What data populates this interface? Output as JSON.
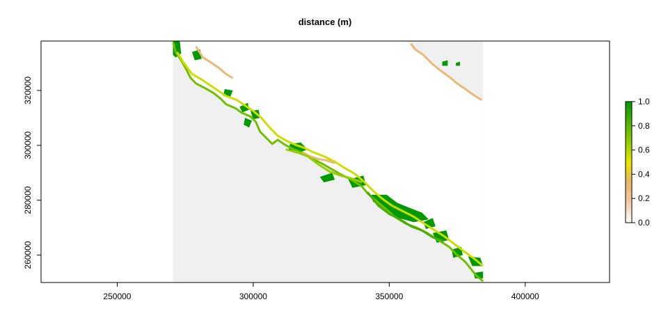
{
  "chart_data": {
    "type": "heatmap",
    "title": "distance (m)",
    "xlabel": "",
    "ylabel": "",
    "xlim": [
      222000,
      431000
    ],
    "ylim": [
      250000,
      338000
    ],
    "x_ticks": [
      250000,
      300000,
      350000,
      400000
    ],
    "x_tick_labels": [
      "250000",
      "300000",
      "350000",
      "400000"
    ],
    "y_ticks": [
      260000,
      280000,
      300000,
      320000
    ],
    "y_tick_labels": [
      "260000",
      "280000",
      "300000",
      "320000"
    ],
    "raster_extent": {
      "xmin": 270500,
      "xmax": 384500,
      "ymin": 250000,
      "ymax": 338000
    },
    "na_color": "#f0f0f0",
    "legend": {
      "position": "right",
      "min": 0,
      "max": 1,
      "ticks": [
        0.0,
        0.2,
        0.4,
        0.6,
        0.8,
        1.0
      ],
      "tick_labels": [
        "0.0",
        "0.2",
        "0.4",
        "0.6",
        "0.8",
        "1.0"
      ],
      "colors": [
        "#ffffff",
        "#f3c9a6",
        "#e8b56b",
        "#e6e600",
        "#8fcc00",
        "#4fb000",
        "#009900"
      ]
    },
    "coastlines": [
      {
        "name": "",
        "value": 0.75,
        "points": [
          [
            270600,
            337500
          ],
          [
            271500,
            334000
          ],
          [
            273500,
            331000
          ],
          [
            275500,
            327500
          ],
          [
            277000,
            324500
          ],
          [
            279000,
            322500
          ],
          [
            282000,
            321000
          ],
          [
            285500,
            319000
          ],
          [
            288000,
            317000
          ],
          [
            290000,
            315000
          ],
          [
            293500,
            313500
          ],
          [
            295500,
            312000
          ],
          [
            299000,
            310500
          ],
          [
            301000,
            308500
          ],
          [
            302500,
            305000
          ],
          [
            305000,
            302500
          ],
          [
            307000,
            300500
          ],
          [
            309000,
            302000
          ],
          [
            312000,
            300000
          ],
          [
            315000,
            298500
          ],
          [
            318500,
            297000
          ],
          [
            322000,
            295000
          ],
          [
            325000,
            293500
          ],
          [
            328500,
            291500
          ],
          [
            332000,
            289500
          ],
          [
            336000,
            287500
          ],
          [
            340000,
            285000
          ],
          [
            342000,
            282500
          ],
          [
            345000,
            280000
          ],
          [
            348500,
            277000
          ],
          [
            352000,
            274000
          ],
          [
            356000,
            271500
          ],
          [
            360000,
            270000
          ],
          [
            364000,
            268000
          ],
          [
            368000,
            265500
          ],
          [
            372000,
            263000
          ],
          [
            375000,
            260000
          ],
          [
            378000,
            257500
          ],
          [
            380000,
            255000
          ],
          [
            382000,
            252500
          ],
          [
            384500,
            250500
          ]
        ]
      },
      {
        "name": "",
        "value": 0.55,
        "points": [
          [
            272000,
            334000
          ],
          [
            274500,
            330000
          ],
          [
            277500,
            326000
          ],
          [
            281000,
            324000
          ],
          [
            284000,
            322000
          ],
          [
            287000,
            320000
          ],
          [
            290000,
            318000
          ],
          [
            294000,
            316500
          ],
          [
            297000,
            314500
          ],
          [
            300000,
            312500
          ],
          [
            303000,
            310000
          ],
          [
            306000,
            306500
          ],
          [
            309000,
            303500
          ],
          [
            312500,
            301500
          ],
          [
            316000,
            300000
          ],
          [
            319000,
            299000
          ],
          [
            322000,
            297500
          ],
          [
            326000,
            296000
          ],
          [
            330000,
            294000
          ],
          [
            334000,
            291500
          ],
          [
            337500,
            289500
          ],
          [
            341000,
            286500
          ],
          [
            344000,
            283500
          ],
          [
            347500,
            280500
          ],
          [
            351000,
            278000
          ],
          [
            355000,
            276000
          ],
          [
            359000,
            274000
          ],
          [
            362000,
            272000
          ],
          [
            366000,
            269500
          ],
          [
            370000,
            267000
          ],
          [
            374000,
            264000
          ],
          [
            378000,
            261000
          ],
          [
            381500,
            258500
          ],
          [
            384500,
            256000
          ]
        ]
      },
      {
        "name": "",
        "value": 0.3,
        "points": [
          [
            279000,
            336000
          ],
          [
            281500,
            332000
          ],
          [
            284000,
            330500
          ],
          [
            287000,
            328500
          ],
          [
            290000,
            326000
          ],
          [
            292500,
            324500
          ]
        ]
      },
      {
        "name": "",
        "value": 0.3,
        "points": [
          [
            358000,
            337000
          ],
          [
            359500,
            335000
          ],
          [
            362500,
            333000
          ],
          [
            365500,
            330000
          ],
          [
            368500,
            327500
          ],
          [
            372000,
            325000
          ],
          [
            375000,
            322500
          ],
          [
            378000,
            320500
          ],
          [
            381500,
            318000
          ],
          [
            384000,
            316500
          ]
        ]
      },
      {
        "name": "",
        "value": 0.3,
        "points": [
          [
            318000,
            297500
          ],
          [
            321000,
            296000
          ],
          [
            324000,
            295000
          ],
          [
            327000,
            294500
          ],
          [
            330000,
            293500
          ]
        ]
      },
      {
        "name": "",
        "value": 0.65,
        "points": [
          [
            312000,
            298500
          ],
          [
            316000,
            297500
          ],
          [
            320000,
            296000
          ],
          [
            324000,
            293000
          ],
          [
            328000,
            290500
          ],
          [
            332000,
            289000
          ],
          [
            336000,
            288000
          ],
          [
            340000,
            286500
          ]
        ]
      },
      {
        "name": "",
        "value": 0.85,
        "points": [
          [
            342000,
            283000
          ],
          [
            346000,
            278000
          ],
          [
            350000,
            275000
          ],
          [
            354000,
            273000
          ],
          [
            358000,
            270500
          ],
          [
            362000,
            269000
          ],
          [
            366000,
            266500
          ],
          [
            370000,
            265000
          ]
        ]
      }
    ],
    "patches": [
      {
        "name": "",
        "value": 1.0,
        "points": [
          [
            270500,
            338000
          ],
          [
            273000,
            338000
          ],
          [
            273500,
            333500
          ],
          [
            271500,
            332000
          ],
          [
            270500,
            333000
          ]
        ]
      },
      {
        "name": "",
        "value": 1.0,
        "points": [
          [
            277500,
            334000
          ],
          [
            280500,
            335000
          ],
          [
            281000,
            331500
          ],
          [
            278500,
            331000
          ]
        ]
      },
      {
        "name": "",
        "value": 1.0,
        "points": [
          [
            289500,
            320500
          ],
          [
            292500,
            320000
          ],
          [
            291500,
            317500
          ],
          [
            289000,
            318000
          ]
        ]
      },
      {
        "name": "",
        "value": 1.0,
        "points": [
          [
            295000,
            314000
          ],
          [
            298000,
            315500
          ],
          [
            298500,
            313000
          ],
          [
            296000,
            312000
          ]
        ]
      },
      {
        "name": "",
        "value": 1.0,
        "points": [
          [
            299000,
            312500
          ],
          [
            302000,
            313000
          ],
          [
            302500,
            310000
          ],
          [
            300000,
            309500
          ]
        ]
      },
      {
        "name": "",
        "value": 1.0,
        "points": [
          [
            297000,
            310000
          ],
          [
            299500,
            309000
          ],
          [
            298500,
            306500
          ],
          [
            296500,
            307500
          ]
        ]
      },
      {
        "name": "",
        "value": 1.0,
        "points": [
          [
            313500,
            300500
          ],
          [
            317500,
            301000
          ],
          [
            320000,
            298500
          ],
          [
            316000,
            297000
          ],
          [
            313000,
            298000
          ]
        ]
      },
      {
        "name": "",
        "value": 1.0,
        "points": [
          [
            324500,
            288500
          ],
          [
            329000,
            290000
          ],
          [
            330000,
            287500
          ],
          [
            326000,
            286500
          ]
        ]
      },
      {
        "name": "",
        "value": 1.0,
        "points": [
          [
            335000,
            287500
          ],
          [
            340500,
            289000
          ],
          [
            341500,
            285500
          ],
          [
            336500,
            284500
          ]
        ]
      },
      {
        "name": "",
        "value": 1.0,
        "points": [
          [
            343500,
            282000
          ],
          [
            349000,
            282000
          ],
          [
            353000,
            279000
          ],
          [
            358000,
            277000
          ],
          [
            362000,
            275500
          ],
          [
            364500,
            273000
          ],
          [
            359000,
            272000
          ],
          [
            353500,
            273500
          ],
          [
            348000,
            277000
          ],
          [
            344000,
            279500
          ]
        ]
      },
      {
        "name": "",
        "value": 1.0,
        "points": [
          [
            348500,
            276500
          ],
          [
            352000,
            278000
          ],
          [
            353500,
            275500
          ],
          [
            350000,
            274500
          ]
        ]
      },
      {
        "name": "",
        "value": 1.0,
        "points": [
          [
            362500,
            272000
          ],
          [
            366000,
            273500
          ],
          [
            367000,
            270500
          ],
          [
            363500,
            269500
          ]
        ]
      },
      {
        "name": "",
        "value": 1.0,
        "points": [
          [
            366000,
            268000
          ],
          [
            371000,
            269000
          ],
          [
            372000,
            265500
          ],
          [
            367500,
            264500
          ]
        ]
      },
      {
        "name": "",
        "value": 1.0,
        "points": [
          [
            373000,
            262000
          ],
          [
            376500,
            263000
          ],
          [
            377000,
            260000
          ],
          [
            373500,
            259000
          ]
        ]
      },
      {
        "name": "",
        "value": 1.0,
        "points": [
          [
            379000,
            259500
          ],
          [
            383500,
            259000
          ],
          [
            384500,
            256000
          ],
          [
            380500,
            256000
          ]
        ]
      },
      {
        "name": "",
        "value": 1.0,
        "points": [
          [
            381000,
            253500
          ],
          [
            384500,
            254000
          ],
          [
            384500,
            251500
          ],
          [
            381500,
            251500
          ]
        ]
      },
      {
        "name": "",
        "value": 1.0,
        "points": [
          [
            369500,
            330500
          ],
          [
            371500,
            331000
          ],
          [
            371500,
            329000
          ],
          [
            369500,
            329000
          ]
        ]
      },
      {
        "name": "",
        "value": 1.0,
        "points": [
          [
            374500,
            330000
          ],
          [
            376000,
            330500
          ],
          [
            376000,
            329000
          ],
          [
            374500,
            329000
          ]
        ]
      }
    ]
  }
}
